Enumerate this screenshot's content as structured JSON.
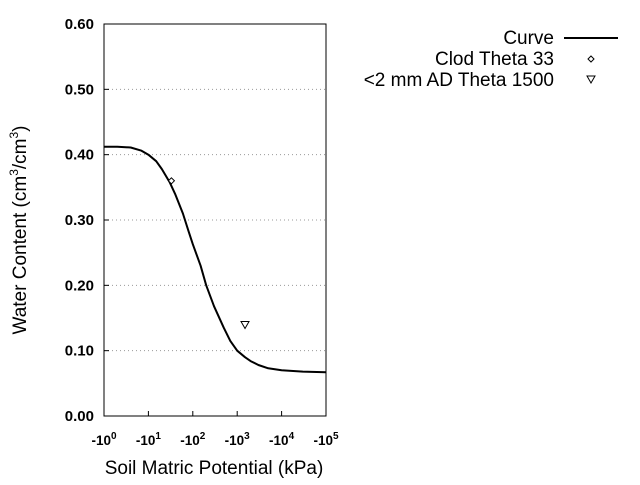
{
  "chart_data": {
    "type": "line",
    "title": "",
    "xlabel": "Soil Matric Potential (kPa)",
    "ylabel": {
      "prefix": "Water Content (cm",
      "sup1": "3",
      "mid": "/cm",
      "sup2": "3",
      "suffix": ")"
    },
    "x_scale": "log",
    "xlim": [
      1,
      100000
    ],
    "ylim": [
      0,
      0.6
    ],
    "x_ticks": [
      {
        "value": 1,
        "base": "-10",
        "exp": "0"
      },
      {
        "value": 10,
        "base": "-10",
        "exp": "1"
      },
      {
        "value": 100,
        "base": "-10",
        "exp": "2"
      },
      {
        "value": 1000,
        "base": "-10",
        "exp": "3"
      },
      {
        "value": 10000,
        "base": "-10",
        "exp": "4"
      },
      {
        "value": 100000,
        "base": "-10",
        "exp": "5"
      }
    ],
    "y_ticks": [
      {
        "value": 0,
        "label": "0.00"
      },
      {
        "value": 0.1,
        "label": "0.10"
      },
      {
        "value": 0.2,
        "label": "0.20"
      },
      {
        "value": 0.3,
        "label": "0.30"
      },
      {
        "value": 0.4,
        "label": "0.40"
      },
      {
        "value": 0.5,
        "label": "0.50"
      },
      {
        "value": 0.6,
        "label": "0.60"
      }
    ],
    "grid": {
      "horizontal": true,
      "style": "dotted"
    },
    "legend_position": "top-right",
    "series": [
      {
        "name": "Curve",
        "kind": "line",
        "color": "#000000",
        "points": [
          [
            1,
            0.412
          ],
          [
            2,
            0.412
          ],
          [
            4,
            0.411
          ],
          [
            7,
            0.406
          ],
          [
            10,
            0.4
          ],
          [
            15,
            0.39
          ],
          [
            20,
            0.378
          ],
          [
            30,
            0.358
          ],
          [
            40,
            0.34
          ],
          [
            60,
            0.31
          ],
          [
            80,
            0.283
          ],
          [
            100,
            0.263
          ],
          [
            150,
            0.23
          ],
          [
            200,
            0.2
          ],
          [
            300,
            0.168
          ],
          [
            500,
            0.135
          ],
          [
            700,
            0.115
          ],
          [
            1000,
            0.1
          ],
          [
            1500,
            0.09
          ],
          [
            2000,
            0.084
          ],
          [
            3000,
            0.078
          ],
          [
            5000,
            0.073
          ],
          [
            10000,
            0.07
          ],
          [
            30000,
            0.068
          ],
          [
            100000,
            0.067
          ]
        ]
      },
      {
        "name": "Clod Theta 33",
        "kind": "scatter",
        "marker": "diamond",
        "color": "#000000",
        "points": [
          [
            33,
            0.36
          ]
        ]
      },
      {
        "name": "<2 mm AD Theta 1500",
        "kind": "scatter",
        "marker": "triangle-down",
        "color": "#000000",
        "points": [
          [
            1500,
            0.14
          ]
        ]
      }
    ]
  }
}
